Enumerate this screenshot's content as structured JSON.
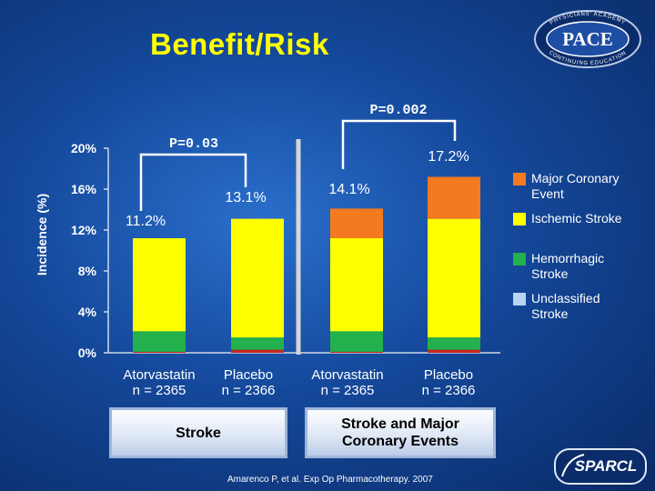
{
  "title": "Benefit/Risk",
  "logo": {
    "text": "PACE",
    "ring_top": "PHYSICIANS' ACADEMY",
    "ring_bottom": "CONTINUING EDUCATION"
  },
  "sparcl_logo": {
    "text": "SPARCL"
  },
  "citation": "Amarenco P, et al. Exp Op Pharmacotherapy. 2007",
  "comparisons": [
    {
      "label": "P=0.03"
    },
    {
      "label": "P=0.002"
    }
  ],
  "groups": [
    {
      "label": "Stroke"
    },
    {
      "label": "Stroke and Major Coronary Events"
    }
  ],
  "colors": {
    "major_coronary": "#f47a1f",
    "ischemic": "#ffff00",
    "hemorrhagic": "#22b14c",
    "unclassified": "#c8281e",
    "divider": "#d6d6d6",
    "title": "#ffff00"
  },
  "chart_data": {
    "type": "bar",
    "stacked": true,
    "ylabel": "Incidence (%)",
    "ylim": [
      0,
      20
    ],
    "yticks": [
      "0%",
      "4%",
      "8%",
      "12%",
      "16%",
      "20%"
    ],
    "categories": [
      "Atorvastatin\nn = 2365",
      "Placebo\nn = 2366",
      "Atorvastatin\nn = 2365",
      "Placebo\nn = 2366"
    ],
    "category_lines": [
      [
        "Atorvastatin",
        "n = 2365"
      ],
      [
        "Placebo",
        "n = 2366"
      ],
      [
        "Atorvastatin",
        "n = 2365"
      ],
      [
        "Placebo",
        "n = 2366"
      ]
    ],
    "series": [
      {
        "name": "Unclassified Stroke",
        "color": "#c8281e",
        "values": [
          0.1,
          0.3,
          0.1,
          0.3
        ]
      },
      {
        "name": "Hemorrhagic Stroke",
        "color": "#22b14c",
        "values": [
          2.0,
          1.2,
          2.0,
          1.2
        ]
      },
      {
        "name": "Ischemic Stroke",
        "color": "#ffff00",
        "values": [
          9.1,
          11.6,
          9.1,
          11.6
        ]
      },
      {
        "name": "Major Coronary Event",
        "color": "#f47a1f",
        "values": [
          0,
          0,
          2.9,
          4.1
        ]
      }
    ],
    "totals": [
      "11.2%",
      "13.1%",
      "14.1%",
      "17.2%"
    ],
    "legend": [
      "Major Coronary Event",
      "Ischemic Stroke",
      "Hemorrhagic Stroke",
      "Unclassified Stroke"
    ],
    "legend_position": "right",
    "grid": false
  }
}
